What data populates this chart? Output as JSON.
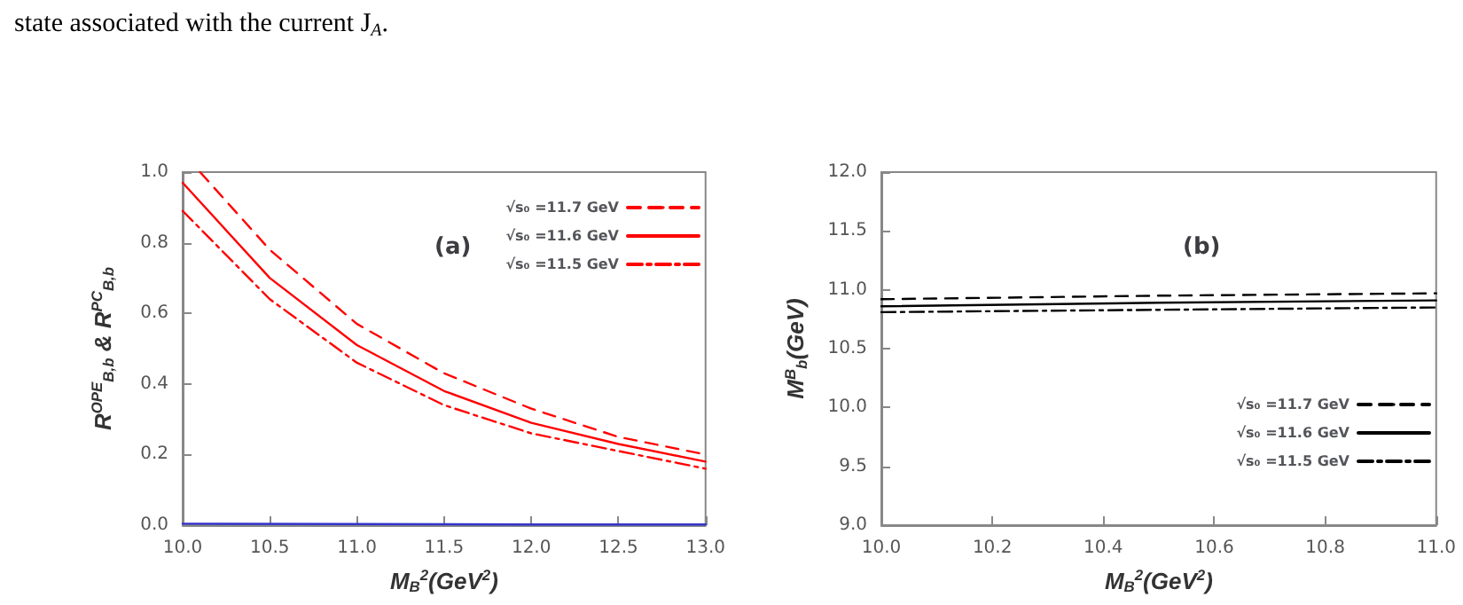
{
  "chart_data": [
    {
      "type": "line",
      "title": "(a)",
      "annotations": [
        "state associated with the current J$_{A}$."
      ],
      "xlabel": "M$_{B}$$^{2}$(GeV$^{2}$)",
      "ylabel": "R$^{OPE}$$_{B,b}$ & R$^{PC}$$_{B,b}$",
      "xlim": [
        10,
        13
      ],
      "ylim": [
        0,
        1
      ],
      "xticks": [
        {
          "value": 10,
          "label": "10.0"
        },
        {
          "value": 10.5,
          "label": "10.5"
        },
        {
          "value": 11,
          "label": "11.0"
        },
        {
          "value": 11.5,
          "label": "11.5"
        },
        {
          "value": 12,
          "label": "12.0"
        },
        {
          "value": 12.5,
          "label": "12.5"
        },
        {
          "value": 13,
          "label": "13.0"
        }
      ],
      "yticks": [
        {
          "value": 0,
          "label": "0.0"
        },
        {
          "value": 0.2,
          "label": "0.2"
        },
        {
          "value": 0.4,
          "label": "0.4"
        },
        {
          "value": 0.6,
          "label": "0.6"
        },
        {
          "value": 0.8,
          "label": "0.8"
        },
        {
          "value": 1,
          "label": "1.0"
        }
      ],
      "grid": false,
      "legend": "top right",
      "marker": "none",
      "series": [
        {
          "name": "√s₀ =11.7 GeV",
          "color": "#ff0000",
          "line_style": "dashed",
          "x": [
            10.1,
            10.5,
            11,
            11.5,
            12,
            12.5,
            13
          ],
          "values": [
            1.0,
            0.78,
            0.57,
            0.43,
            0.33,
            0.25,
            0.2
          ]
        },
        {
          "name": "√s₀ =11.6 GeV",
          "color": "#ff0000",
          "line_style": "solid",
          "x": [
            10,
            10.5,
            11,
            11.5,
            12,
            12.5,
            13
          ],
          "values": [
            0.97,
            0.7,
            0.51,
            0.38,
            0.29,
            0.23,
            0.18
          ]
        },
        {
          "name": "√s₀ =11.5 GeV",
          "color": "#ff0000",
          "line_style": "dashdot",
          "x": [
            10,
            10.5,
            11,
            11.5,
            12,
            12.5,
            13
          ],
          "values": [
            0.89,
            0.64,
            0.46,
            0.34,
            0.26,
            0.21,
            0.16
          ]
        },
        {
          "color": "#3333cc",
          "line_style": "solid",
          "x": [
            10,
            11,
            12,
            13
          ],
          "values": [
            0.004,
            0.003,
            0.002,
            0.002
          ]
        }
      ]
    },
    {
      "type": "line",
      "title": "(b)",
      "xlabel": "M$_{B}$$^{2}$(GeV$^{2}$)",
      "ylabel": "M$^{B}$$_{b}$(GeV)",
      "xlim": [
        10,
        11
      ],
      "ylim": [
        9,
        12
      ],
      "xticks": [
        {
          "value": 10,
          "label": "10.0"
        },
        {
          "value": 10.2,
          "label": "10.2"
        },
        {
          "value": 10.4,
          "label": "10.4"
        },
        {
          "value": 10.6,
          "label": "10.6"
        },
        {
          "value": 10.8,
          "label": "10.8"
        },
        {
          "value": 11,
          "label": "11.0"
        }
      ],
      "yticks": [
        {
          "value": 9,
          "label": "9.0"
        },
        {
          "value": 9.5,
          "label": "9.5"
        },
        {
          "value": 10,
          "label": "10.0"
        },
        {
          "value": 10.5,
          "label": "10.5"
        },
        {
          "value": 11,
          "label": "11.0"
        },
        {
          "value": 11.5,
          "label": "11.5"
        },
        {
          "value": 12,
          "label": "12.0"
        }
      ],
      "grid": false,
      "legend": "bottom right",
      "marker": "none",
      "series": [
        {
          "name": "√s₀ =11.7 GeV",
          "color": "#000000",
          "line_style": "dashed",
          "x": [
            10,
            10.5,
            11
          ],
          "values": [
            10.92,
            10.95,
            10.97
          ]
        },
        {
          "name": "√s₀ =11.6 GeV",
          "color": "#000000",
          "line_style": "solid",
          "x": [
            10,
            10.5,
            11
          ],
          "values": [
            10.86,
            10.89,
            10.91
          ]
        },
        {
          "name": "√s₀ =11.5 GeV",
          "color": "#000000",
          "line_style": "dashdot",
          "x": [
            10,
            10.5,
            11
          ],
          "values": [
            10.81,
            10.83,
            10.85
          ]
        }
      ]
    }
  ]
}
